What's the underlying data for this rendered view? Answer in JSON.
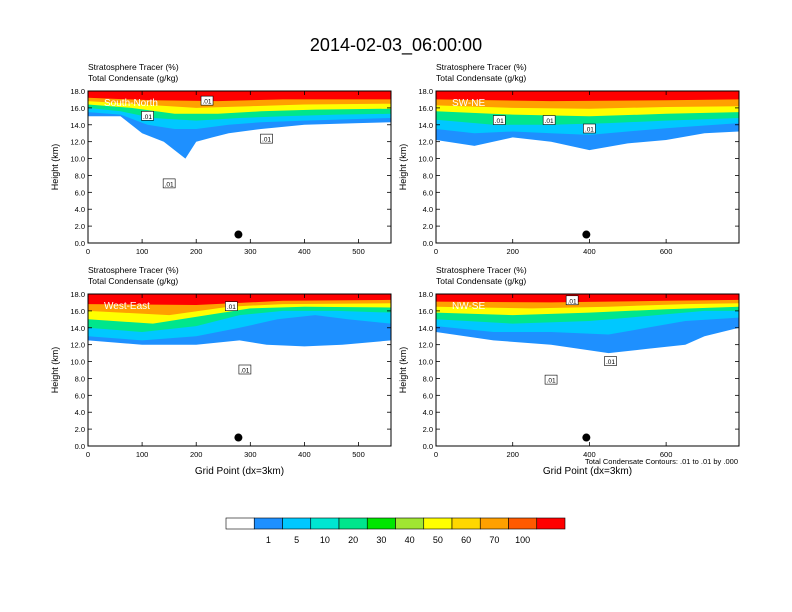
{
  "title": "2014-02-03_06:00:00",
  "footnote": "Total Condensate Contours: .01 to .01 by .000",
  "colorbar": {
    "colors": [
      "#ffffff",
      "#1e90ff",
      "#00c8ff",
      "#00e6d2",
      "#00e68c",
      "#00e600",
      "#a0e632",
      "#ffff00",
      "#ffd700",
      "#ffa000",
      "#ff5a00",
      "#ff0000"
    ],
    "labels": [
      "1",
      "5",
      "10",
      "20",
      "30",
      "40",
      "50",
      "60",
      "70",
      "100"
    ]
  },
  "chart_data": [
    {
      "type": "contour",
      "panel": "South-North",
      "label_main": "Stratosphere Tracer   (%)",
      "label_sub": "Total Condensate   (g/kg)",
      "ylabel": "Height (km)",
      "xlabel": "",
      "xlim": [
        0,
        560
      ],
      "ylim": [
        0,
        18
      ],
      "xticks": [
        {
          "v": 0,
          "t": "0"
        },
        {
          "v": 100,
          "t": "100"
        },
        {
          "v": 200,
          "t": "200"
        },
        {
          "v": 300,
          "t": "300"
        },
        {
          "v": 400,
          "t": "400"
        },
        {
          "v": 500,
          "t": "500"
        }
      ],
      "yticks": [
        "0.0",
        "2.0",
        "4.0",
        "6.0",
        "8.0",
        "10.0",
        "12.0",
        "14.0",
        "16.0",
        "18.0"
      ],
      "marker": {
        "x": 278,
        "y": 1.0
      },
      "contour_labels": [
        {
          "x": 110,
          "y": 15.0,
          "t": ".01"
        },
        {
          "x": 220,
          "y": 16.8,
          "t": ".01"
        },
        {
          "x": 150,
          "y": 7.0,
          "t": ".01"
        },
        {
          "x": 330,
          "y": 12.3,
          "t": ".01"
        }
      ],
      "layers": [
        [
          [
            0,
            15.0
          ],
          [
            60,
            15.0
          ],
          [
            100,
            13.0
          ],
          [
            140,
            12.0
          ],
          [
            180,
            10.0
          ],
          [
            200,
            12.0
          ],
          [
            230,
            12.5
          ],
          [
            260,
            13.0
          ],
          [
            320,
            13.5
          ],
          [
            400,
            14.0
          ],
          [
            500,
            14.2
          ],
          [
            560,
            14.3
          ]
        ],
        [
          [
            0,
            15.5
          ],
          [
            60,
            15.2
          ],
          [
            110,
            14.0
          ],
          [
            160,
            13.5
          ],
          [
            200,
            13.5
          ],
          [
            260,
            14.0
          ],
          [
            320,
            14.3
          ],
          [
            400,
            14.5
          ],
          [
            560,
            14.8
          ]
        ],
        [
          [
            0,
            16.0
          ],
          [
            60,
            15.6
          ],
          [
            120,
            14.8
          ],
          [
            200,
            14.5
          ],
          [
            280,
            14.8
          ],
          [
            360,
            15.0
          ],
          [
            460,
            15.2
          ],
          [
            560,
            15.3
          ]
        ],
        [
          [
            0,
            16.4
          ],
          [
            80,
            16.0
          ],
          [
            160,
            15.3
          ],
          [
            240,
            15.3
          ],
          [
            320,
            15.6
          ],
          [
            420,
            15.8
          ],
          [
            560,
            15.9
          ]
        ],
        [
          [
            0,
            16.8
          ],
          [
            100,
            16.4
          ],
          [
            200,
            16.0
          ],
          [
            300,
            16.2
          ],
          [
            400,
            16.4
          ],
          [
            560,
            16.5
          ]
        ],
        [
          [
            0,
            17.2
          ],
          [
            120,
            16.9
          ],
          [
            240,
            16.8
          ],
          [
            360,
            17.0
          ],
          [
            560,
            17.0
          ]
        ]
      ]
    },
    {
      "type": "contour",
      "panel": "SW-NE",
      "label_main": "Stratosphere Tracer   (%)",
      "label_sub": "Total Condensate   (g/kg)",
      "ylabel": "Height (km)",
      "xlabel": "",
      "xlim": [
        0,
        790
      ],
      "ylim": [
        0,
        18
      ],
      "xticks": [
        {
          "v": 0,
          "t": "0"
        },
        {
          "v": 200,
          "t": "200"
        },
        {
          "v": 400,
          "t": "400"
        },
        {
          "v": 600,
          "t": "600"
        }
      ],
      "yticks": [
        "0.0",
        "2.0",
        "4.0",
        "6.0",
        "8.0",
        "10.0",
        "12.0",
        "14.0",
        "16.0",
        "18.0"
      ],
      "marker": {
        "x": 392,
        "y": 1.0
      },
      "contour_labels": [
        {
          "x": 165,
          "y": 14.5,
          "t": ".01"
        },
        {
          "x": 295,
          "y": 14.5,
          "t": ".01"
        },
        {
          "x": 400,
          "y": 13.5,
          "t": ".01"
        }
      ],
      "layers": [
        [
          [
            0,
            12.2
          ],
          [
            100,
            11.5
          ],
          [
            200,
            12.5
          ],
          [
            300,
            12.0
          ],
          [
            400,
            11.0
          ],
          [
            500,
            11.8
          ],
          [
            600,
            12.2
          ],
          [
            700,
            13.0
          ],
          [
            790,
            13.2
          ]
        ],
        [
          [
            0,
            13.5
          ],
          [
            100,
            13.0
          ],
          [
            200,
            13.2
          ],
          [
            300,
            13.0
          ],
          [
            400,
            12.8
          ],
          [
            500,
            13.2
          ],
          [
            600,
            13.6
          ],
          [
            790,
            14.2
          ]
        ],
        [
          [
            0,
            14.6
          ],
          [
            150,
            14.0
          ],
          [
            300,
            14.0
          ],
          [
            450,
            14.2
          ],
          [
            600,
            14.5
          ],
          [
            790,
            14.8
          ]
        ],
        [
          [
            0,
            15.6
          ],
          [
            200,
            15.2
          ],
          [
            400,
            15.0
          ],
          [
            600,
            15.3
          ],
          [
            790,
            15.5
          ]
        ],
        [
          [
            0,
            16.3
          ],
          [
            200,
            16.0
          ],
          [
            400,
            15.9
          ],
          [
            600,
            16.1
          ],
          [
            790,
            16.2
          ]
        ],
        [
          [
            0,
            17.0
          ],
          [
            300,
            16.8
          ],
          [
            600,
            16.9
          ],
          [
            790,
            17.0
          ]
        ]
      ]
    },
    {
      "type": "contour",
      "panel": "West-East",
      "label_main": "Stratosphere Tracer   (%)",
      "label_sub": "Total Condensate   (g/kg)",
      "ylabel": "Height (km)",
      "xlabel": "Grid Point (dx=3km)",
      "xlim": [
        0,
        560
      ],
      "ylim": [
        0,
        18
      ],
      "xticks": [
        {
          "v": 0,
          "t": "0"
        },
        {
          "v": 100,
          "t": "100"
        },
        {
          "v": 200,
          "t": "200"
        },
        {
          "v": 300,
          "t": "300"
        },
        {
          "v": 400,
          "t": "400"
        },
        {
          "v": 500,
          "t": "500"
        }
      ],
      "yticks": [
        "0.0",
        "2.0",
        "4.0",
        "6.0",
        "8.0",
        "10.0",
        "12.0",
        "14.0",
        "16.0",
        "18.0"
      ],
      "marker": {
        "x": 278,
        "y": 1.0
      },
      "contour_labels": [
        {
          "x": 265,
          "y": 16.5,
          "t": ".01"
        },
        {
          "x": 290,
          "y": 9.0,
          "t": ".01"
        }
      ],
      "layers": [
        [
          [
            0,
            12.5
          ],
          [
            100,
            12.0
          ],
          [
            200,
            12.0
          ],
          [
            280,
            12.5
          ],
          [
            330,
            12.0
          ],
          [
            400,
            11.8
          ],
          [
            470,
            12.0
          ],
          [
            560,
            12.5
          ]
        ],
        [
          [
            0,
            13.0
          ],
          [
            100,
            12.5
          ],
          [
            200,
            13.0
          ],
          [
            280,
            14.0
          ],
          [
            350,
            15.0
          ],
          [
            420,
            15.5
          ],
          [
            480,
            15.0
          ],
          [
            560,
            14.5
          ]
        ],
        [
          [
            0,
            14.0
          ],
          [
            100,
            13.5
          ],
          [
            200,
            14.2
          ],
          [
            280,
            15.5
          ],
          [
            360,
            16.0
          ],
          [
            460,
            16.0
          ],
          [
            560,
            15.8
          ]
        ],
        [
          [
            0,
            15.0
          ],
          [
            120,
            14.5
          ],
          [
            220,
            15.5
          ],
          [
            300,
            16.3
          ],
          [
            400,
            16.5
          ],
          [
            560,
            16.4
          ]
        ],
        [
          [
            0,
            16.0
          ],
          [
            150,
            15.5
          ],
          [
            260,
            16.5
          ],
          [
            360,
            16.8
          ],
          [
            560,
            16.9
          ]
        ],
        [
          [
            0,
            16.8
          ],
          [
            200,
            16.7
          ],
          [
            360,
            17.2
          ],
          [
            560,
            17.3
          ]
        ]
      ]
    },
    {
      "type": "contour",
      "panel": "NW-SE",
      "label_main": "Stratosphere Tracer   (%)",
      "label_sub": "Total Condensate   (g/kg)",
      "ylabel": "Height (km)",
      "xlabel": "Grid Point (dx=3km)",
      "xlim": [
        0,
        790
      ],
      "ylim": [
        0,
        18
      ],
      "xticks": [
        {
          "v": 0,
          "t": "0"
        },
        {
          "v": 200,
          "t": "200"
        },
        {
          "v": 400,
          "t": "400"
        },
        {
          "v": 600,
          "t": "600"
        }
      ],
      "yticks": [
        "0.0",
        "2.0",
        "4.0",
        "6.0",
        "8.0",
        "10.0",
        "12.0",
        "14.0",
        "16.0",
        "18.0"
      ],
      "marker": {
        "x": 392,
        "y": 1.0
      },
      "contour_labels": [
        {
          "x": 300,
          "y": 7.8,
          "t": ".01"
        },
        {
          "x": 355,
          "y": 17.2,
          "t": ".01"
        },
        {
          "x": 455,
          "y": 10.0,
          "t": ".01"
        }
      ],
      "layers": [
        [
          [
            0,
            13.5
          ],
          [
            150,
            12.5
          ],
          [
            300,
            12.0
          ],
          [
            450,
            11.0
          ],
          [
            550,
            11.5
          ],
          [
            650,
            12.0
          ],
          [
            700,
            13.0
          ],
          [
            790,
            14.0
          ]
        ],
        [
          [
            0,
            14.2
          ],
          [
            150,
            13.5
          ],
          [
            300,
            13.5
          ],
          [
            450,
            13.2
          ],
          [
            550,
            14.0
          ],
          [
            650,
            14.8
          ],
          [
            790,
            15.2
          ]
        ],
        [
          [
            0,
            15.0
          ],
          [
            200,
            14.5
          ],
          [
            400,
            14.8
          ],
          [
            550,
            15.4
          ],
          [
            700,
            16.0
          ],
          [
            790,
            16.0
          ]
        ],
        [
          [
            0,
            15.8
          ],
          [
            200,
            15.5
          ],
          [
            400,
            15.8
          ],
          [
            600,
            16.2
          ],
          [
            790,
            16.5
          ]
        ],
        [
          [
            0,
            16.5
          ],
          [
            250,
            16.3
          ],
          [
            450,
            16.5
          ],
          [
            650,
            16.8
          ],
          [
            790,
            16.9
          ]
        ],
        [
          [
            0,
            17.1
          ],
          [
            300,
            17.0
          ],
          [
            600,
            17.2
          ],
          [
            790,
            17.3
          ]
        ]
      ]
    }
  ]
}
